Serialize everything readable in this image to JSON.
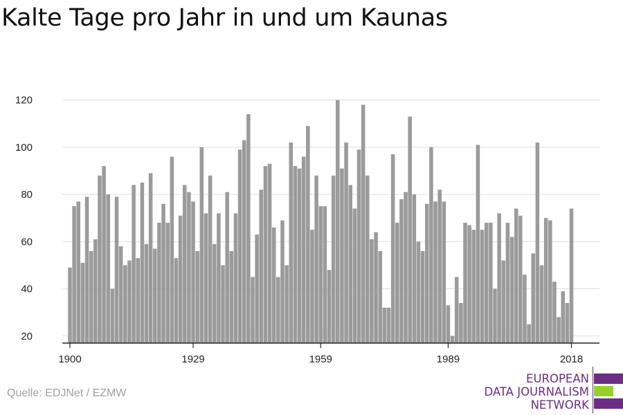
{
  "chart_data": {
    "type": "bar",
    "title": "Kalte Tage pro Jahr in und um Kaunas",
    "xlabel": "",
    "ylabel": "",
    "ylim": [
      17,
      124
    ],
    "yticks": [
      20,
      40,
      60,
      80,
      100,
      120
    ],
    "xtick_labels": [
      "1900",
      "1929",
      "1959",
      "1989",
      "2018"
    ],
    "x_start": 1900,
    "x_end": 2018,
    "bar_color": "#9b9b9b",
    "grid": true,
    "values": [
      49,
      75,
      77,
      51,
      79,
      56,
      61,
      88,
      92,
      80,
      40,
      79,
      58,
      50,
      52,
      84,
      53,
      85,
      59,
      89,
      57,
      68,
      76,
      68,
      96,
      53,
      71,
      84,
      81,
      77,
      56,
      100,
      72,
      88,
      59,
      72,
      50,
      81,
      56,
      72,
      99,
      103,
      114,
      45,
      63,
      82,
      92,
      93,
      66,
      45,
      69,
      50,
      102,
      92,
      91,
      96,
      109,
      65,
      88,
      75,
      75,
      48,
      88,
      120,
      91,
      102,
      84,
      74,
      99,
      118,
      88,
      61,
      64,
      56,
      32,
      32,
      97,
      68,
      78,
      81,
      113,
      80,
      60,
      56,
      76,
      100,
      77,
      82,
      77,
      33,
      20,
      45,
      34,
      68,
      67,
      65,
      101,
      65,
      68,
      68,
      40,
      72,
      52,
      68,
      62,
      74,
      71,
      46,
      25,
      55,
      102,
      50,
      70,
      69,
      43,
      28,
      39,
      34,
      74
    ]
  },
  "source": "Quelle: EDJNet / EZMW",
  "logo": {
    "lines": [
      "EUROPEAN",
      "DATA JOURNALISM",
      "NETWORK"
    ],
    "colors": {
      "purple": "#6b2d86",
      "green": "#95d12a"
    }
  }
}
